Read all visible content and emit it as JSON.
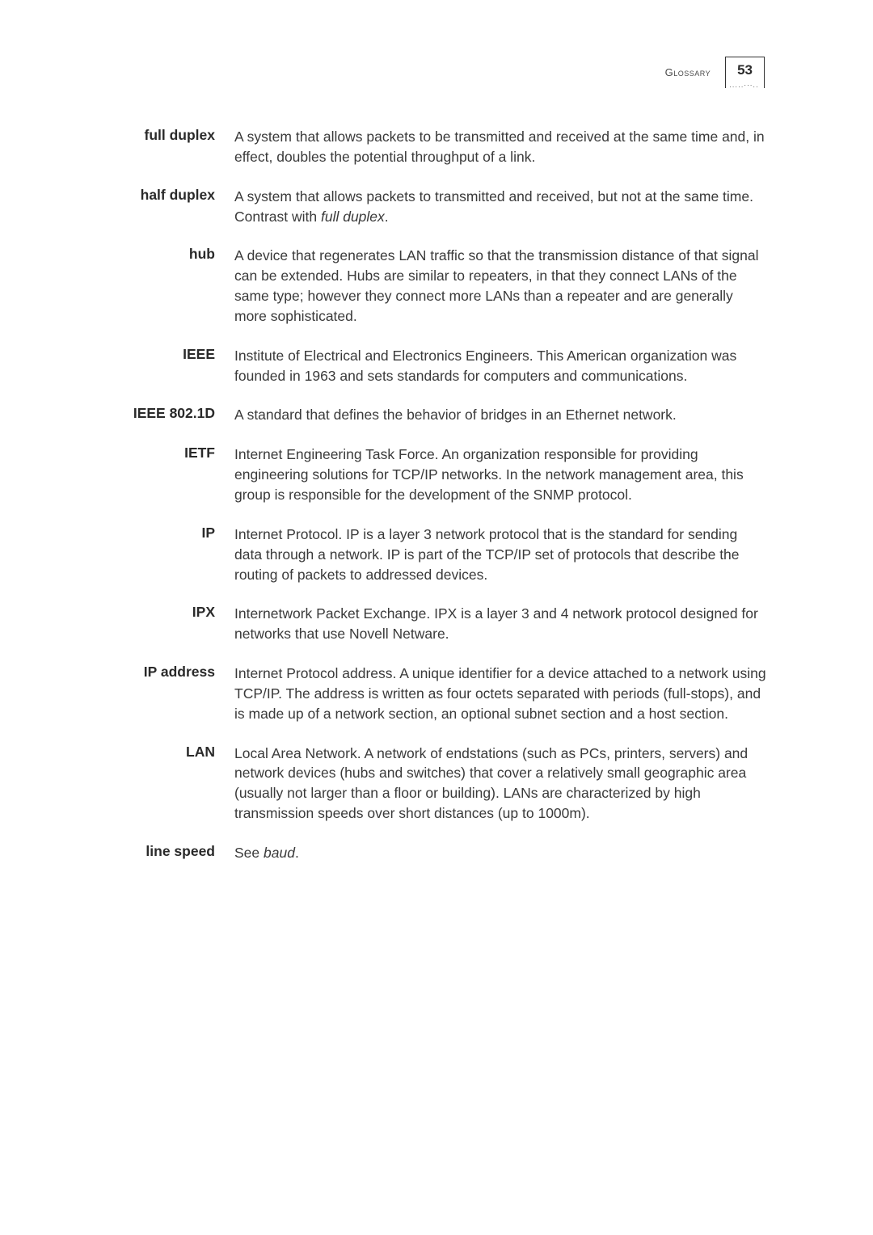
{
  "header": {
    "title": "Glossary",
    "page_number": "53"
  },
  "entries": [
    {
      "term": "full duplex",
      "definition": "A system that allows packets to be transmitted and received at the same time and, in effect, doubles the potential throughput of a link."
    },
    {
      "term": "half duplex",
      "definition": "A system that allows packets to transmitted and received, but not at the same time. Contrast with <em>full duplex</em>."
    },
    {
      "term": "hub",
      "definition": "A device that regenerates LAN traffic so that the transmission distance of that signal can be extended. Hubs are similar to repeaters, in that they connect LANs of the same type; however they connect more LANs than a repeater and are generally more sophisticated."
    },
    {
      "term": "IEEE",
      "definition": "Institute of Electrical and Electronics Engineers. This American organization was founded in 1963 and sets standards for computers and communications."
    },
    {
      "term": "IEEE 802.1D",
      "definition": "A standard that defines the behavior of bridges in an Ethernet network."
    },
    {
      "term": "IETF",
      "definition": "Internet Engineering Task Force. An organization responsible for providing engineering solutions for TCP/IP networks. In the network management area, this group is responsible for the development of the SNMP protocol."
    },
    {
      "term": "IP",
      "definition": "Internet Protocol. IP is a layer 3 network protocol that is the standard for sending data through a network. IP is part of the TCP/IP set of protocols that describe the routing of packets to addressed devices."
    },
    {
      "term": "IPX",
      "definition": "Internetwork Packet Exchange. IPX is a layer 3 and 4 network protocol designed for networks that use Novell Netware."
    },
    {
      "term": "IP address",
      "definition": "Internet Protocol address. A unique identifier for a device attached to a network using TCP/IP. The address is written as four octets separated with periods (full-stops), and is made up of a network section, an optional subnet section and a host section."
    },
    {
      "term": "LAN",
      "definition": "Local Area Network. A network of endstations (such as PCs, printers, servers) and network devices (hubs and switches) that cover a relatively small geographic area (usually not larger than a floor or building). LANs are characterized by high transmission speeds over short distances (up to 1000m)."
    },
    {
      "term": "line speed",
      "definition": "See <em>baud</em>."
    }
  ]
}
